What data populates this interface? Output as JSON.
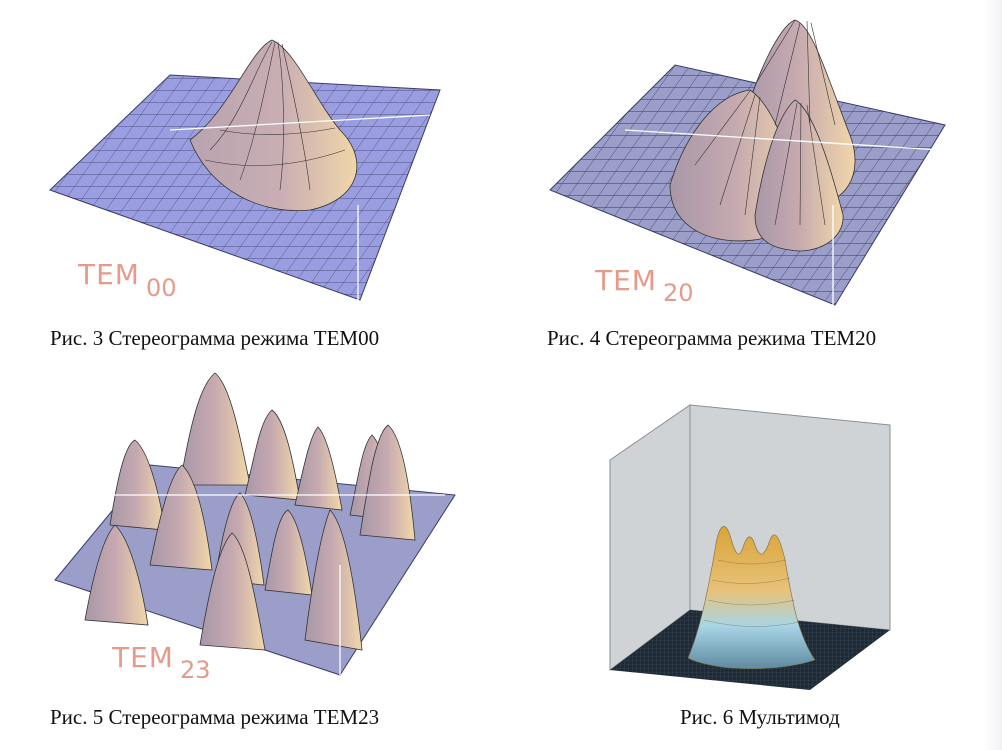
{
  "figures": [
    {
      "caption": "Рис. 3 Стереограмма режима TEM00",
      "mode_label": "TEM",
      "mode_sub": "00"
    },
    {
      "caption": "Рис. 4 Стереограмма режима TEM20",
      "mode_label": "TEM",
      "mode_sub": "20"
    },
    {
      "caption": "Рис. 5 Стереограмма режима TEM23",
      "mode_label": "TEM",
      "mode_sub": "23"
    },
    {
      "caption": "Рис. 6 Мультимод"
    }
  ],
  "colors": {
    "surface_blue": "#9a9ee0",
    "peak_pink": "#c7aeb4",
    "peak_cream": "#f2d8a8",
    "mesh_line": "#2a2a55",
    "label_pink": "#e89a8a",
    "multimode_gold": "#d9a437",
    "multimode_cyan": "#a8d5e6",
    "box_gray": "#cfd3d6"
  }
}
